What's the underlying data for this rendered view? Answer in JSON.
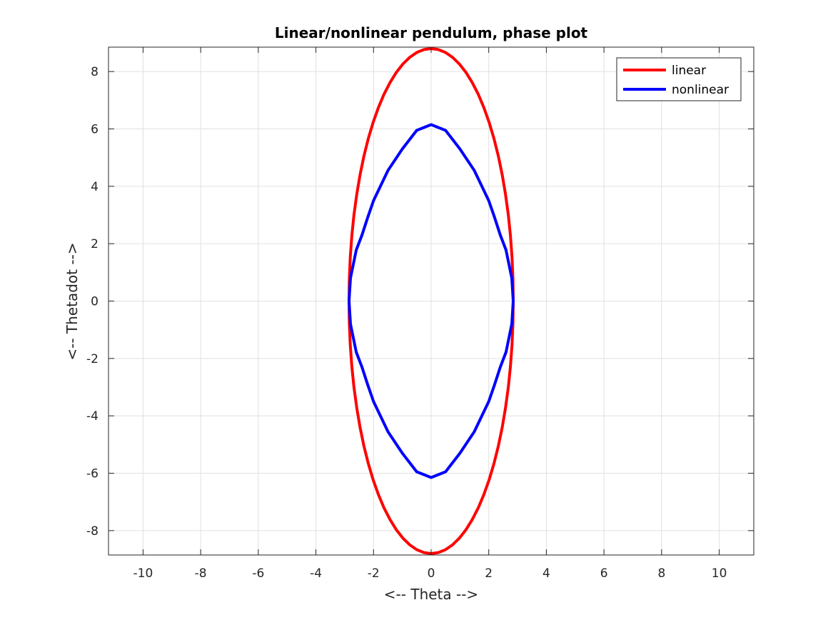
{
  "chart_data": {
    "type": "line",
    "title": "Linear/nonlinear pendulum, phase plot",
    "xlabel": "<-- Theta -->",
    "ylabel": "<-- Thetadot -->",
    "xlim": [
      -11.2,
      11.2
    ],
    "ylim": [
      -8.85,
      8.85
    ],
    "xticks": [
      -10,
      -8,
      -6,
      -4,
      -2,
      0,
      2,
      4,
      6,
      8,
      10
    ],
    "yticks": [
      -8,
      -6,
      -4,
      -2,
      0,
      2,
      4,
      6,
      8
    ],
    "grid": true,
    "legend_position": "top-right",
    "series": [
      {
        "name": "linear",
        "color": "#ff0000",
        "curve": "ellipse",
        "theta_amplitude": 2.85,
        "thetadot_amplitude": 8.8
      },
      {
        "name": "nonlinear",
        "color": "#0000ff",
        "curve": "pendulum-separatrix",
        "theta_amplitude": 2.85,
        "thetadot_amplitude": 6.15,
        "points": [
          [
            -2.85,
            0
          ],
          [
            -2.8,
            0.8
          ],
          [
            -2.6,
            1.78
          ],
          [
            -2.4,
            2.3
          ],
          [
            -2.2,
            2.92
          ],
          [
            -2.0,
            3.5
          ],
          [
            -1.5,
            4.55
          ],
          [
            -1.0,
            5.3
          ],
          [
            -0.5,
            5.95
          ],
          [
            0,
            6.15
          ],
          [
            0.5,
            5.95
          ],
          [
            1.0,
            5.3
          ],
          [
            1.5,
            4.55
          ],
          [
            2.0,
            3.5
          ],
          [
            2.2,
            2.92
          ],
          [
            2.4,
            2.3
          ],
          [
            2.6,
            1.78
          ],
          [
            2.8,
            0.8
          ],
          [
            2.85,
            0
          ]
        ]
      }
    ]
  }
}
